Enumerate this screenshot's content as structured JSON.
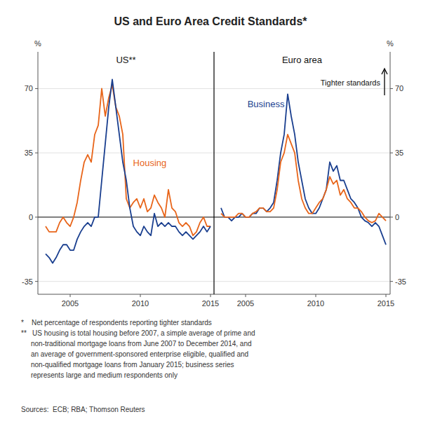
{
  "chart_data": [
    {
      "type": "line",
      "title": "US and Euro Area Credit Standards*",
      "subtitle": "US**",
      "ylabel": "%",
      "x": [
        2003.25,
        2003.5,
        2003.75,
        2004.0,
        2004.25,
        2004.5,
        2004.75,
        2005.0,
        2005.25,
        2005.5,
        2005.75,
        2006.0,
        2006.25,
        2006.5,
        2006.75,
        2007.0,
        2007.25,
        2007.5,
        2007.75,
        2008.0,
        2008.25,
        2008.5,
        2008.75,
        2009.0,
        2009.25,
        2009.5,
        2009.75,
        2010.0,
        2010.25,
        2010.5,
        2010.75,
        2011.0,
        2011.25,
        2011.5,
        2011.75,
        2012.0,
        2012.25,
        2012.5,
        2012.75,
        2013.0,
        2013.25,
        2013.5,
        2013.75,
        2014.0,
        2014.25,
        2014.5,
        2014.75,
        2015.0
      ],
      "series": [
        {
          "name": "Housing",
          "color": "#E8651A",
          "values": [
            -5,
            -8,
            -8,
            -8,
            -3,
            0,
            -3,
            -5,
            0,
            8,
            20,
            30,
            34,
            30,
            45,
            50,
            70,
            55,
            65,
            72,
            60,
            55,
            45,
            10,
            5,
            8,
            10,
            5,
            10,
            3,
            5,
            12,
            8,
            5,
            0,
            15,
            5,
            3,
            -3,
            -5,
            -3,
            -5,
            -10,
            -8,
            -3,
            0,
            -5,
            -5
          ]
        },
        {
          "color": "#1A3F8F",
          "values": [
            -20,
            -22,
            -25,
            -22,
            -18,
            -15,
            -15,
            -18,
            -18,
            -12,
            -8,
            -5,
            -3,
            -5,
            0,
            0,
            20,
            40,
            60,
            75,
            60,
            45,
            30,
            20,
            5,
            -5,
            -8,
            -10,
            -5,
            -8,
            -10,
            2,
            -5,
            -3,
            -5,
            -3,
            -5,
            -5,
            -8,
            -10,
            -8,
            -10,
            -12,
            -10,
            -8,
            -5,
            -8,
            -5
          ]
        }
      ],
      "xlim": [
        2002.7,
        2015.25
      ],
      "xticks": [
        2005,
        2010,
        2015
      ],
      "ylim": [
        -42,
        90
      ],
      "yticks": [
        -35,
        0,
        35,
        70
      ],
      "grid": true,
      "footnotes": [
        "*    Net percentage of respondents reporting tighter standards",
        "**   US housing is total housing before 2007, a simple average of prime and",
        "     non-traditional mortgage loans from June 2007 to December 2014, and",
        "     an average of government-sponsored enterprise eligible, qualified and",
        "     non-qualified mortgage loans from January 2015; business series",
        "     represents large and medium respondents only"
      ],
      "sources": "Sources:  ECB; RBA; Thomson Reuters"
    },
    {
      "type": "line",
      "subtitle": "Euro area",
      "ylabel": "%",
      "annotation": "Tighter standards",
      "x": [
        2003.25,
        2003.5,
        2003.75,
        2004.0,
        2004.25,
        2004.5,
        2004.75,
        2005.0,
        2005.25,
        2005.5,
        2005.75,
        2006.0,
        2006.25,
        2006.5,
        2006.75,
        2007.0,
        2007.25,
        2007.5,
        2007.75,
        2008.0,
        2008.25,
        2008.5,
        2008.75,
        2009.0,
        2009.25,
        2009.5,
        2009.75,
        2010.0,
        2010.25,
        2010.5,
        2010.75,
        2011.0,
        2011.25,
        2011.5,
        2011.75,
        2012.0,
        2012.25,
        2012.5,
        2012.75,
        2013.0,
        2013.25,
        2013.5,
        2013.75,
        2014.0,
        2014.25,
        2014.5,
        2014.75,
        2015.0
      ],
      "series": [
        {
          "name": "Business",
          "color": "#1A3F8F",
          "values": [
            5,
            0,
            0,
            -2,
            0,
            0,
            2,
            0,
            0,
            2,
            2,
            5,
            5,
            3,
            5,
            8,
            20,
            35,
            45,
            67,
            55,
            45,
            30,
            20,
            10,
            5,
            2,
            2,
            5,
            10,
            15,
            30,
            25,
            28,
            20,
            20,
            15,
            10,
            8,
            5,
            0,
            -2,
            -3,
            -5,
            -3,
            -5,
            -10,
            -15
          ]
        },
        {
          "color": "#E8651A",
          "values": [
            2,
            0,
            0,
            0,
            0,
            2,
            2,
            0,
            0,
            2,
            3,
            5,
            5,
            3,
            3,
            5,
            15,
            30,
            35,
            45,
            40,
            35,
            20,
            10,
            5,
            2,
            2,
            5,
            8,
            10,
            15,
            22,
            18,
            20,
            12,
            15,
            10,
            8,
            5,
            5,
            3,
            0,
            -2,
            -3,
            -2,
            2,
            0,
            -2
          ]
        }
      ],
      "xlim": [
        2002.75,
        2015.3
      ],
      "xticks": [
        2005,
        2010,
        2015
      ],
      "ylim": [
        -42,
        90
      ],
      "yticks": [
        -35,
        0,
        35,
        70
      ],
      "grid": true
    }
  ]
}
